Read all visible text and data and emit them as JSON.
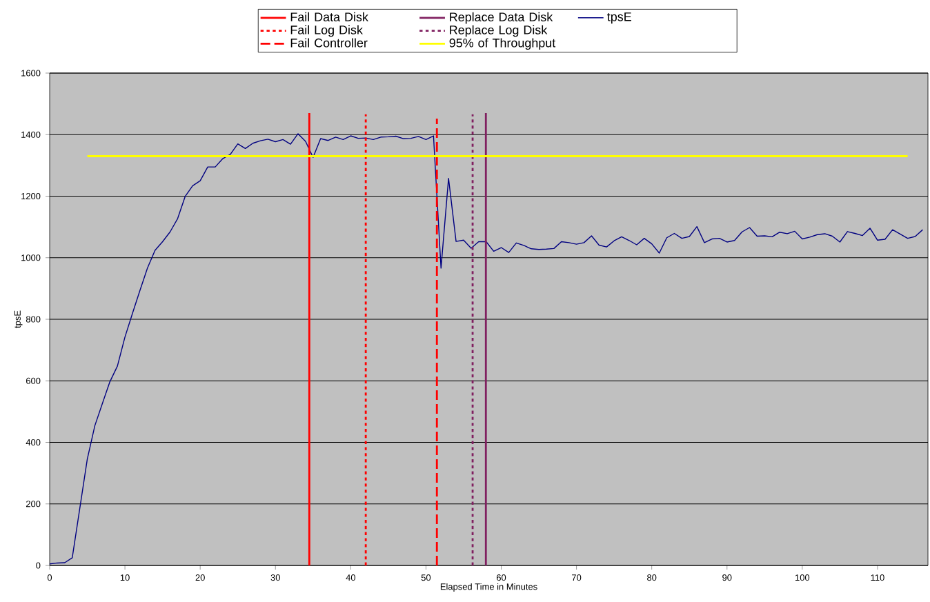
{
  "chart_data": {
    "type": "line",
    "xlabel": "Elapsed Time in Minutes",
    "ylabel": "tpsE",
    "xlim": [
      0,
      116.7
    ],
    "xticks": [
      0,
      10,
      20,
      30,
      40,
      50,
      60,
      70,
      80,
      90,
      100,
      110
    ],
    "ylim": [
      0,
      1600
    ],
    "yticks": [
      0,
      200,
      400,
      600,
      800,
      1000,
      1200,
      1400,
      1600
    ],
    "grid": "y",
    "legend": "top",
    "x": [
      0,
      1,
      2,
      3,
      4,
      5,
      6,
      7,
      8,
      9,
      10,
      11,
      12,
      13,
      14,
      15,
      16,
      17,
      18,
      19,
      20,
      21,
      22,
      23,
      24,
      25,
      26,
      27,
      28,
      29,
      30,
      31,
      32,
      33,
      34,
      35,
      36,
      37,
      38,
      39,
      40,
      41,
      42,
      43,
      44,
      45,
      46,
      47,
      48,
      49,
      50,
      51,
      52,
      53,
      54,
      55,
      56,
      57,
      58,
      59,
      60,
      61,
      62,
      63,
      64,
      65,
      66,
      67,
      68,
      69,
      70,
      71,
      72,
      73,
      74,
      75,
      76,
      77,
      78,
      79,
      80,
      81,
      82,
      83,
      84,
      85,
      86,
      87,
      88,
      89,
      90,
      91,
      92,
      93,
      94,
      95,
      96,
      97,
      98,
      99,
      100,
      101,
      102,
      103,
      104,
      105,
      106,
      107,
      108,
      109,
      110,
      111,
      112,
      113,
      114,
      115,
      116
    ],
    "series": [
      {
        "name": "Fail Data Disk",
        "color": "#ff0000",
        "line_style": "solid",
        "x": [
          34.5,
          34.5
        ],
        "values": [
          0,
          1470
        ]
      },
      {
        "name": "Fail Log Disk",
        "color": "#ff0000",
        "line_style": "dotted",
        "x": [
          42.0,
          42.0
        ],
        "values": [
          0,
          1466
        ]
      },
      {
        "name": "Fail Controller",
        "color": "#ff0000",
        "line_style": "dashed",
        "x": [
          51.45,
          51.45
        ],
        "values": [
          0,
          1452
        ]
      },
      {
        "name": "Replace Data Disk",
        "color": "#802060",
        "line_style": "solid",
        "x": [
          57.96,
          57.96
        ],
        "values": [
          0,
          1470
        ]
      },
      {
        "name": "Replace Log Disk",
        "color": "#802060",
        "line_style": "dotted",
        "x": [
          56.2,
          56.2
        ],
        "values": [
          0,
          1466
        ]
      },
      {
        "name": "95% of Throughput",
        "color": "#ffff00",
        "line_style": "solid",
        "x": [
          5,
          114
        ],
        "values": [
          1330,
          1330
        ]
      },
      {
        "name": "tpsE",
        "color": "#000080",
        "line_style": "solid",
        "values": [
          5,
          8,
          9,
          25,
          185,
          346,
          454,
          526,
          597,
          648,
          742,
          819,
          894,
          967,
          1024,
          1052,
          1084,
          1127,
          1199,
          1234,
          1250,
          1295,
          1295,
          1322,
          1336,
          1370,
          1355,
          1372,
          1380,
          1385,
          1377,
          1384,
          1369,
          1403,
          1378,
          1326,
          1387,
          1381,
          1392,
          1384,
          1396,
          1388,
          1389,
          1384,
          1392,
          1393,
          1395,
          1387,
          1388,
          1394,
          1384,
          1396,
          966,
          1258,
          1053,
          1057,
          1031,
          1052,
          1052,
          1021,
          1033,
          1017,
          1048,
          1040,
          1029,
          1027,
          1028,
          1030,
          1052,
          1049,
          1044,
          1049,
          1071,
          1041,
          1035,
          1055,
          1068,
          1056,
          1042,
          1063,
          1045,
          1015,
          1065,
          1079,
          1063,
          1069,
          1101,
          1049,
          1061,
          1063,
          1051,
          1056,
          1084,
          1098,
          1070,
          1071,
          1068,
          1083,
          1078,
          1086,
          1061,
          1067,
          1075,
          1078,
          1070,
          1051,
          1085,
          1079,
          1072,
          1096,
          1057,
          1060,
          1091,
          1077,
          1063,
          1069,
          1091
        ]
      }
    ]
  }
}
